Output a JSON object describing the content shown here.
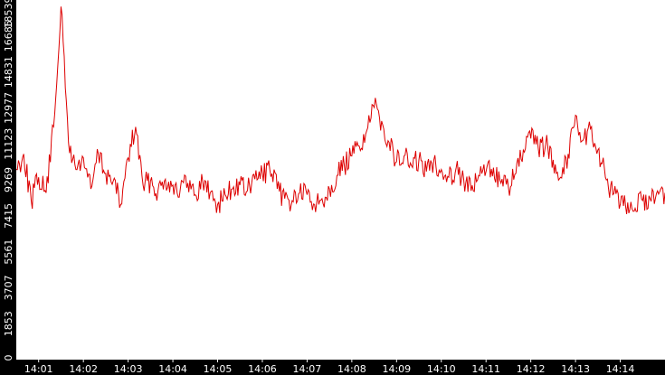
{
  "chart_data": {
    "type": "line",
    "title": "",
    "xlabel": "",
    "ylabel": "",
    "ylim": [
      0,
      18539
    ],
    "xlim": [
      "14:00:30",
      "14:15:00"
    ],
    "yticks": [
      "0",
      "1853",
      "3707",
      "5561",
      "7415",
      "9269",
      "11123",
      "12977",
      "14831",
      "16685",
      "18539"
    ],
    "xticks": [
      "14:01",
      "14:02",
      "14:03",
      "14:04",
      "14:05",
      "14:06",
      "14:07",
      "14:08",
      "14:09",
      "14:10",
      "14:11",
      "14:12",
      "14:13",
      "14:14"
    ],
    "grid": false,
    "legend": "none",
    "colors": {
      "background": "#000000",
      "plot_area": "#ffffff",
      "series": "#dd0000",
      "text": "#ffffff"
    },
    "series": [
      {
        "x": [
          "14:00:30",
          "14:00:40",
          "14:00:50",
          "14:01:00",
          "14:01:10",
          "14:01:20",
          "14:01:30",
          "14:01:40",
          "14:01:50",
          "14:02:00",
          "14:02:10",
          "14:02:20",
          "14:02:30",
          "14:02:40",
          "14:02:50",
          "14:03:00",
          "14:03:10",
          "14:03:20",
          "14:03:30",
          "14:03:40",
          "14:03:50",
          "14:04:00",
          "14:04:10",
          "14:04:20",
          "14:04:30",
          "14:04:40",
          "14:04:50",
          "14:05:00",
          "14:05:10",
          "14:05:20",
          "14:05:30",
          "14:05:40",
          "14:05:50",
          "14:06:00",
          "14:06:10",
          "14:06:20",
          "14:06:30",
          "14:06:40",
          "14:06:50",
          "14:07:00",
          "14:07:10",
          "14:07:20",
          "14:07:30",
          "14:07:40",
          "14:07:50",
          "14:08:00",
          "14:08:10",
          "14:08:20",
          "14:08:30",
          "14:08:40",
          "14:08:50",
          "14:09:00",
          "14:09:10",
          "14:09:20",
          "14:09:30",
          "14:09:40",
          "14:09:50",
          "14:10:00",
          "14:10:10",
          "14:10:20",
          "14:10:30",
          "14:10:40",
          "14:10:50",
          "14:11:00",
          "14:11:10",
          "14:11:20",
          "14:11:30",
          "14:11:40",
          "14:11:50",
          "14:12:00",
          "14:12:10",
          "14:12:20",
          "14:12:30",
          "14:12:40",
          "14:12:50",
          "14:13:00",
          "14:13:10",
          "14:13:20",
          "14:13:30",
          "14:13:40",
          "14:13:50",
          "14:14:00",
          "14:14:10",
          "14:14:20",
          "14:14:30",
          "14:14:40",
          "14:14:50",
          "14:15:00"
        ],
        "values": [
          9800,
          10600,
          8200,
          9400,
          8600,
          12000,
          18200,
          11200,
          9800,
          10400,
          8800,
          10600,
          9600,
          9200,
          8000,
          10400,
          12000,
          9000,
          9200,
          8700,
          9300,
          9000,
          8800,
          9100,
          8500,
          9200,
          8600,
          8000,
          8500,
          8800,
          9000,
          8700,
          9300,
          9600,
          9800,
          8800,
          8300,
          8200,
          8600,
          8500,
          8000,
          8300,
          8800,
          9500,
          10000,
          10500,
          11000,
          11800,
          13000,
          12300,
          11200,
          10200,
          10500,
          10000,
          10300,
          9700,
          10300,
          9800,
          9400,
          9900,
          9300,
          8700,
          9500,
          9700,
          9900,
          9100,
          8900,
          9600,
          10800,
          11400,
          10900,
          11100,
          10300,
          9400,
          10600,
          12600,
          11300,
          11900,
          10800,
          9400,
          8500,
          8000,
          8100,
          7800,
          8200,
          8300,
          8700,
          8600
        ]
      }
    ]
  }
}
